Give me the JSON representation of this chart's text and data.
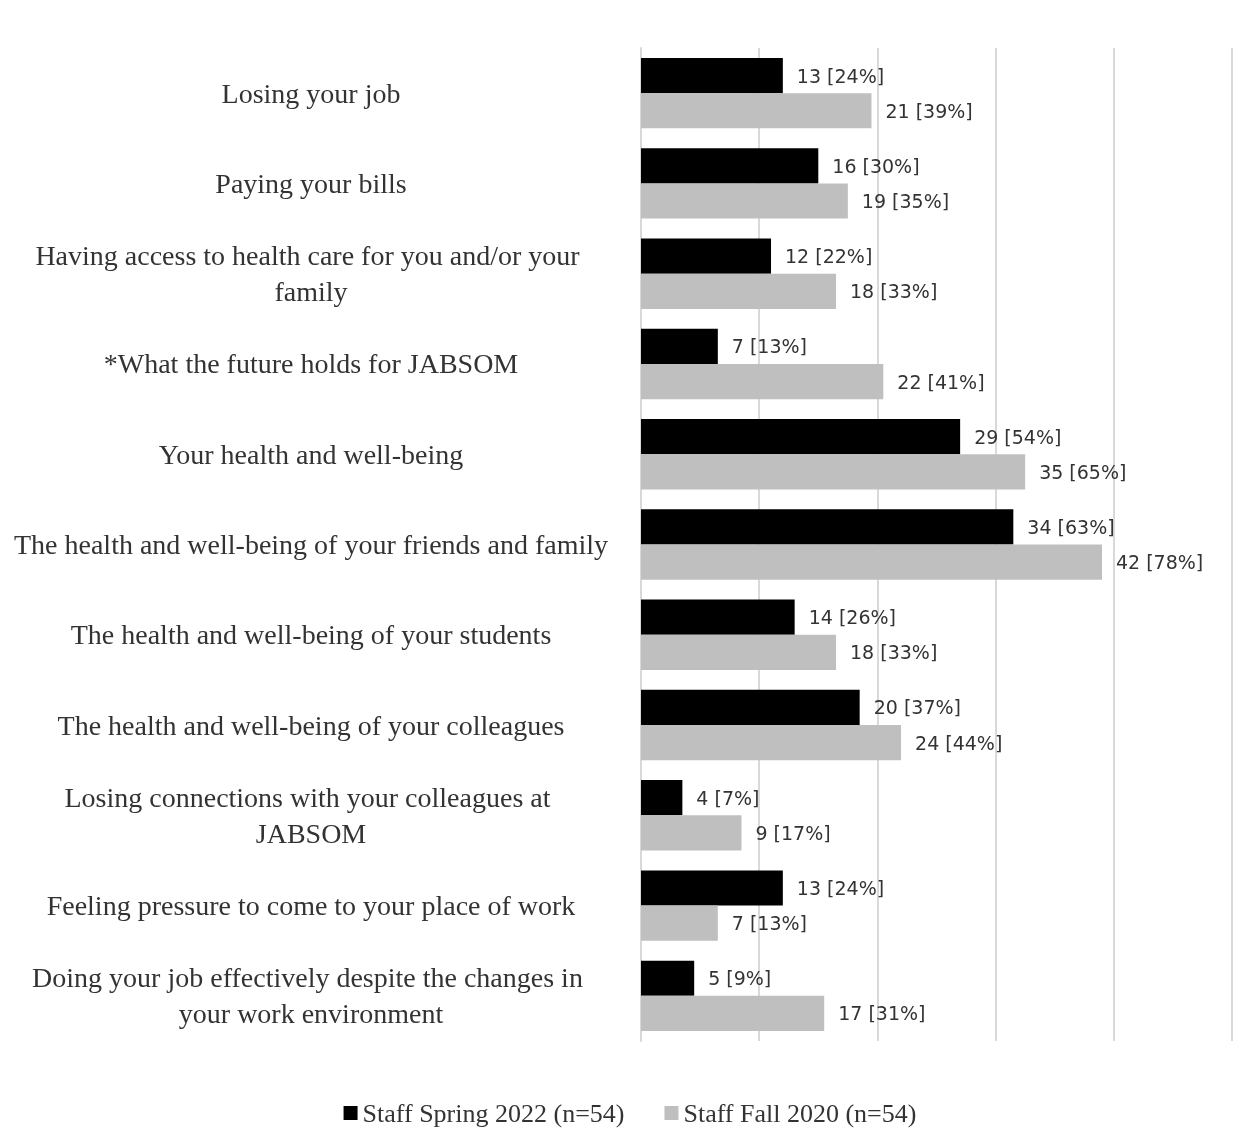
{
  "chart_data": {
    "type": "bar",
    "orientation": "horizontal",
    "categories": [
      "Losing your job",
      "Paying your bills",
      "Having access to health care for you and/or your family",
      "*What the future holds for JABSOM",
      "Your health and well-being",
      "The health and well-being of your friends and family",
      "The health and well-being of your students",
      "The health and well-being of your colleagues",
      "Losing connections with your colleagues at JABSOM",
      "Feeling pressure to come to your place of work",
      "Doing your job effectively despite the changes in your work environment"
    ],
    "series": [
      {
        "name": "Staff Spring 2022 (n=54)",
        "color": "#000000",
        "values": [
          24,
          30,
          22,
          13,
          54,
          63,
          26,
          37,
          7,
          24,
          9
        ],
        "value_labels": [
          "13 [24%]",
          "16 [30%]",
          "12 [22%]",
          "7 [13%]",
          "29 [54%]",
          "34 [63%]",
          "14 [26%]",
          "20 [37%]",
          "4 [7%]",
          "13 [24%]",
          "5 [9%]"
        ]
      },
      {
        "name": "Staff Fall 2020 (n=54)",
        "color": "#bfbfbf",
        "values": [
          39,
          35,
          33,
          41,
          65,
          78,
          33,
          44,
          17,
          13,
          31
        ],
        "value_labels": [
          "21 [39%]",
          "19 [35%]",
          "18 [33%]",
          "22 [41%]",
          "35 [65%]",
          "42 [78%]",
          "18 [33%]",
          "24 [44%]",
          "9 [17%]",
          "7 [13%]",
          "17 [31%]"
        ]
      }
    ],
    "xlim": [
      0,
      100
    ],
    "xticks": [
      {
        "value": 0,
        "label": null
      },
      {
        "value": 20,
        "label": null
      },
      {
        "value": 40,
        "label": null
      },
      {
        "value": 60,
        "label": null
      },
      {
        "value": 80,
        "label": null
      },
      {
        "value": 100,
        "label": null
      }
    ],
    "tick_labels": "y",
    "grid": "x",
    "legend": "bottom"
  }
}
